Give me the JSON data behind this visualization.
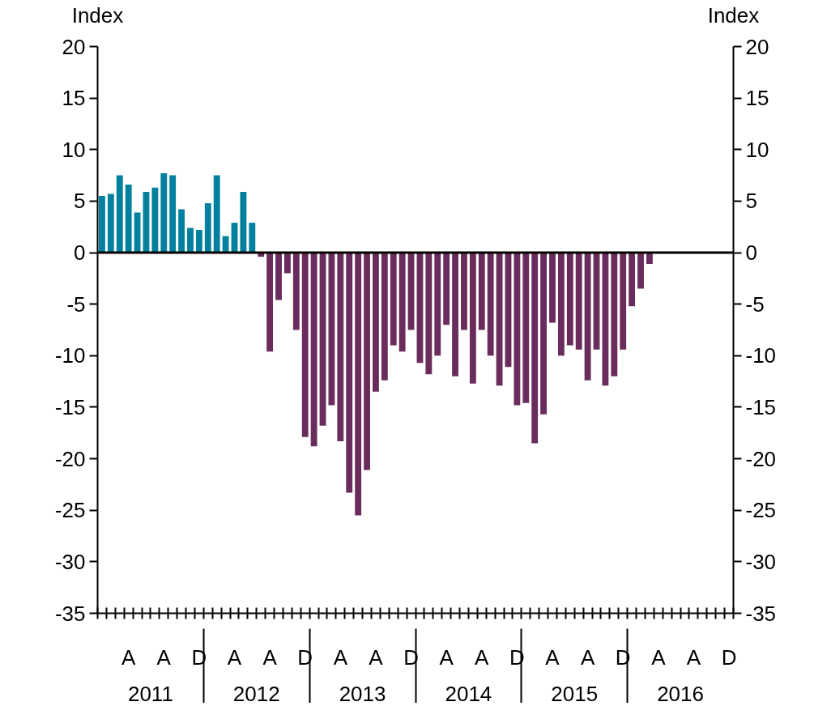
{
  "chart_data": {
    "type": "bar",
    "ylabel": "Index",
    "y2label": "Index",
    "categories": [
      null,
      null,
      null,
      "A",
      null,
      null,
      null,
      "A",
      null,
      null,
      null,
      "D",
      null,
      null,
      null,
      "A",
      null,
      null,
      null,
      "A",
      null,
      null,
      null,
      "D",
      null,
      null,
      null,
      "A",
      null,
      null,
      null,
      "A",
      null,
      null,
      null,
      "D",
      null,
      null,
      null,
      "A",
      null,
      null,
      null,
      "A",
      null,
      null,
      null,
      "D",
      null,
      null,
      null,
      "A",
      null,
      null,
      null,
      "A",
      null,
      null,
      null,
      "D",
      null,
      null,
      null,
      "A",
      null,
      null,
      null,
      "A",
      null,
      null,
      null,
      "D"
    ],
    "values": [
      5.5,
      5.7,
      7.5,
      6.6,
      3.9,
      5.9,
      6.3,
      7.7,
      7.5,
      4.2,
      2.4,
      2.2,
      4.8,
      7.5,
      1.6,
      2.9,
      5.9,
      2.9,
      -0.4,
      -9.6,
      -4.6,
      -2.0,
      -7.5,
      -17.9,
      -18.8,
      -16.8,
      -14.8,
      -18.3,
      -23.3,
      -25.5,
      -21.1,
      -13.5,
      -12.4,
      -9.0,
      -9.6,
      -7.5,
      -10.7,
      -11.8,
      -10.0,
      -7.0,
      -12.0,
      -7.5,
      -12.7,
      -7.5,
      -10.0,
      -12.9,
      -11.1,
      -14.8,
      -14.6,
      -18.5,
      -15.7,
      -6.8,
      -10.0,
      -9.0,
      -9.4,
      -12.4,
      -9.4,
      -12.9,
      -12.0,
      -9.4,
      -5.2,
      -3.5,
      -1.1,
      null,
      null,
      null,
      null,
      null,
      null,
      null,
      null,
      null
    ],
    "colors": [
      "#00809f",
      "#00809f",
      "#00809f",
      "#00809f",
      "#00809f",
      "#00809f",
      "#00809f",
      "#00809f",
      "#00809f",
      "#00809f",
      "#00809f",
      "#00809f",
      "#00809f",
      "#00809f",
      "#00809f",
      "#00809f",
      "#00809f",
      "#00809f",
      "#6a2c5c",
      "#6a2c5c",
      "#6a2c5c",
      "#6a2c5c",
      "#6a2c5c",
      "#6a2c5c",
      "#6a2c5c",
      "#6a2c5c",
      "#6a2c5c",
      "#6a2c5c",
      "#6a2c5c",
      "#6a2c5c",
      "#6a2c5c",
      "#6a2c5c",
      "#6a2c5c",
      "#6a2c5c",
      "#6a2c5c",
      "#6a2c5c",
      "#6a2c5c",
      "#6a2c5c",
      "#6a2c5c",
      "#6a2c5c",
      "#6a2c5c",
      "#6a2c5c",
      "#6a2c5c",
      "#6a2c5c",
      "#6a2c5c",
      "#6a2c5c",
      "#6a2c5c",
      "#6a2c5c",
      "#6a2c5c",
      "#6a2c5c",
      "#6a2c5c",
      "#6a2c5c",
      "#6a2c5c",
      "#6a2c5c",
      "#6a2c5c",
      "#6a2c5c",
      "#6a2c5c",
      "#6a2c5c",
      "#6a2c5c",
      "#6a2c5c",
      "#6a2c5c",
      "#6a2c5c",
      "#6a2c5c",
      "#6a2c5c",
      "#6a2c5c",
      "#6a2c5c",
      "#6a2c5c",
      "#6a2c5c",
      "#6a2c5c",
      "#6a2c5c",
      "#6a2c5c",
      "#6a2c5c"
    ],
    "ylim": [
      -35,
      20
    ],
    "yticks": [
      -35,
      -30,
      -25,
      -20,
      -15,
      -10,
      -5,
      0,
      5,
      10,
      15,
      20
    ],
    "y2lim": [
      -35,
      20
    ],
    "y2ticks": [
      -35,
      -30,
      -25,
      -20,
      -15,
      -10,
      -5,
      0,
      5,
      10,
      15,
      20
    ],
    "ref_lines": [
      {
        "axis": "y",
        "value": 0,
        "color": "#000000"
      }
    ],
    "annotations": [
      "2011",
      "2012",
      "2013",
      "2014",
      "2015",
      "2016"
    ],
    "grid": false
  }
}
